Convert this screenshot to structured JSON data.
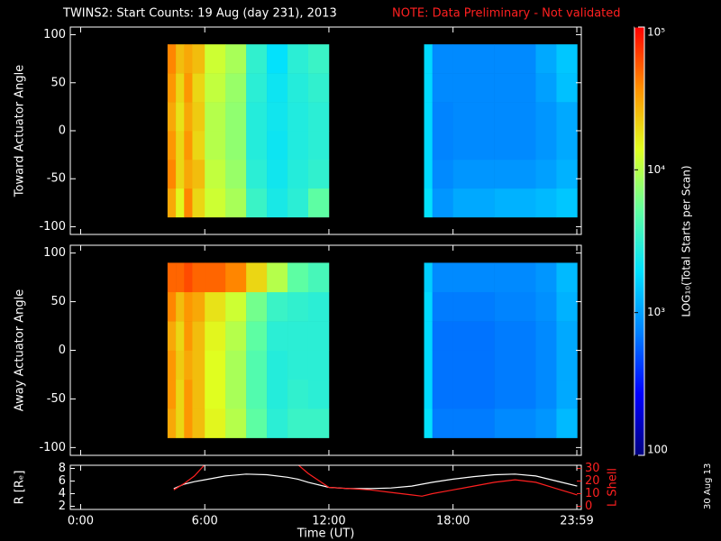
{
  "title": "TWINS2: Start Counts: 19 Aug (day 231), 2013",
  "note": "NOTE: Data Preliminary - Not validated",
  "date_stamp": "30 Aug 13",
  "colorbar": {
    "label": "LOG₁₀(Total Starts per Scan)",
    "log": true,
    "zlim": [
      100,
      100000
    ],
    "ticks": [
      100,
      {
        "value": 1000,
        "label": "10³"
      },
      {
        "value": 10000,
        "label": "10⁴"
      },
      {
        "value": 100000,
        "label": "10⁵"
      }
    ],
    "colors": [
      "#000080",
      "#0000ff",
      "#0080ff",
      "#00e0ff",
      "#60ffa0",
      "#e0ff20",
      "#ff9000",
      "#ff0000"
    ]
  },
  "chart_data": [
    {
      "type": "heatmap",
      "y_label": "Toward Actuator Angle",
      "ylim": [
        -108,
        108
      ],
      "yticks": [
        -100,
        -50,
        0,
        50,
        100
      ],
      "xbins": [
        4.2,
        4.6,
        5.0,
        5.4,
        6.0,
        7.0,
        8.0,
        9.0,
        10.0,
        11.0,
        12.0,
        16.6,
        17.0,
        18.0,
        20.0,
        22.0,
        23.0,
        24.0
      ],
      "ybins": [
        -90,
        -60,
        -30,
        0,
        30,
        60,
        90
      ],
      "values": [
        [
          30000,
          40000,
          35000,
          30000,
          35000,
          40000
        ],
        [
          15000,
          20000,
          20000,
          18000,
          20000,
          25000
        ],
        [
          40000,
          30000,
          35000,
          30000,
          35000,
          30000
        ],
        [
          20000,
          25000,
          20000,
          22000,
          20000,
          25000
        ],
        [
          12000,
          11000,
          10000,
          10000,
          11000,
          12000
        ],
        [
          9000,
          8000,
          7500,
          7500,
          8000,
          9000
        ],
        [
          3500,
          3000,
          2800,
          2800,
          3000,
          3200
        ],
        [
          2500,
          2300,
          2200,
          2300,
          2200,
          2000
        ],
        [
          3000,
          2800,
          2700,
          2700,
          2800,
          3000
        ],
        [
          5000,
          3200,
          3000,
          3000,
          3200,
          3500
        ],
        null,
        [
          2000,
          1800,
          1800,
          1800,
          1800,
          1800
        ],
        [
          900,
          800,
          750,
          750,
          800,
          800
        ],
        [
          1100,
          900,
          800,
          800,
          800,
          800
        ],
        [
          1200,
          900,
          800,
          800,
          800,
          800
        ],
        [
          1300,
          1000,
          900,
          900,
          1000,
          1100
        ],
        [
          1500,
          1200,
          1100,
          1100,
          1400,
          1500
        ]
      ]
    },
    {
      "type": "heatmap",
      "y_label": "Away Actuator Angle",
      "ylim": [
        -108,
        108
      ],
      "yticks": [
        -100,
        -50,
        0,
        50,
        100
      ],
      "xbins": [
        4.2,
        4.6,
        5.0,
        5.4,
        6.0,
        7.0,
        8.0,
        9.0,
        10.0,
        11.0,
        12.0,
        16.6,
        17.0,
        18.0,
        20.0,
        22.0,
        23.0,
        24.0
      ],
      "ybins": [
        -90,
        -60,
        -30,
        0,
        30,
        60,
        90
      ],
      "values": [
        [
          30000,
          35000,
          35000,
          30000,
          40000,
          50000
        ],
        [
          20000,
          20000,
          22000,
          20000,
          25000,
          50000
        ],
        [
          35000,
          35000,
          30000,
          35000,
          35000,
          60000
        ],
        [
          25000,
          25000,
          25000,
          25000,
          30000,
          50000
        ],
        [
          15000,
          14000,
          14000,
          15000,
          18000,
          50000
        ],
        [
          10000,
          9000,
          9000,
          10000,
          12000,
          40000
        ],
        [
          5000,
          4500,
          4500,
          5000,
          6000,
          20000
        ],
        [
          3000,
          2800,
          2800,
          3000,
          3500,
          10000
        ],
        [
          3500,
          3200,
          3000,
          3000,
          3200,
          5000
        ],
        [
          3500,
          3000,
          3000,
          3000,
          3000,
          4000
        ],
        null,
        [
          2000,
          1800,
          1800,
          1800,
          1800,
          1600
        ],
        [
          700,
          650,
          650,
          650,
          700,
          800
        ],
        [
          700,
          650,
          650,
          650,
          700,
          800
        ],
        [
          800,
          700,
          700,
          700,
          750,
          800
        ],
        [
          900,
          800,
          800,
          800,
          850,
          900
        ],
        [
          1300,
          1100,
          1100,
          1100,
          1200,
          1300
        ]
      ]
    },
    {
      "type": "line",
      "x_label": "Time (UT)",
      "y_label": "R [Rₑ]",
      "y2_label": "L Shell",
      "xlim": [
        -0.5,
        24.2
      ],
      "xticks": [
        {
          "value": 0,
          "label": "0:00"
        },
        {
          "value": 6,
          "label": "6:00"
        },
        {
          "value": 12,
          "label": "12:00"
        },
        {
          "value": 18,
          "label": "18:00"
        },
        {
          "value": 23.983,
          "label": "23:59"
        }
      ],
      "ylim": [
        1.5,
        8.5
      ],
      "yticks": [
        2,
        4,
        6,
        8
      ],
      "y2lim": [
        -2.5,
        32.5
      ],
      "y2ticks": [
        0,
        10,
        20,
        30
      ],
      "x": [
        4.5,
        5,
        5.5,
        6,
        7,
        8,
        9,
        10,
        10.5,
        11,
        12,
        13,
        14,
        15,
        16,
        16.5,
        17,
        18,
        19,
        20,
        21,
        22,
        23,
        24
      ],
      "series": [
        {
          "name": "R [Rₑ]",
          "color": "#ffffff",
          "values": [
            4.8,
            5.5,
            5.9,
            6.2,
            6.8,
            7.1,
            7.0,
            6.6,
            6.3,
            5.8,
            5.0,
            4.8,
            4.8,
            4.9,
            5.2,
            5.5,
            5.8,
            6.3,
            6.7,
            7.0,
            7.1,
            6.8,
            6.0,
            5.2
          ]
        },
        {
          "name": "L Shell",
          "color": "#ff2020",
          "axis": "y2",
          "values": [
            13,
            18,
            24,
            33,
            null,
            null,
            null,
            null,
            33,
            26,
            15,
            14,
            13,
            11,
            9,
            8,
            10,
            13,
            16,
            19,
            21,
            19,
            14,
            9
          ]
        }
      ]
    }
  ]
}
